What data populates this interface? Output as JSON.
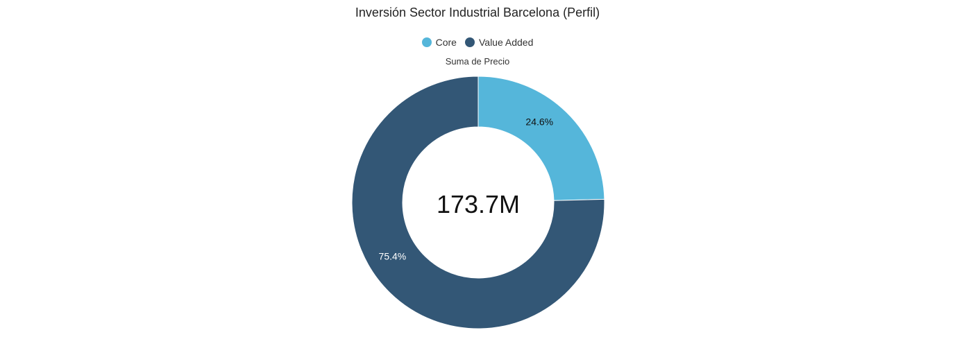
{
  "chart_data": {
    "type": "pie",
    "title": "Inversión Sector Industrial Barcelona (Perfil)",
    "subtitle": "Suma de Precio",
    "center_value": "173.7M",
    "legend_position": "top",
    "slices": [
      {
        "name": "Core",
        "percent": 24.6,
        "label": "24.6%",
        "color": "#55b6da",
        "label_color": "#111111"
      },
      {
        "name": "Value Added",
        "percent": 75.4,
        "label": "75.4%",
        "color": "#335776",
        "label_color": "#ffffff"
      }
    ]
  }
}
